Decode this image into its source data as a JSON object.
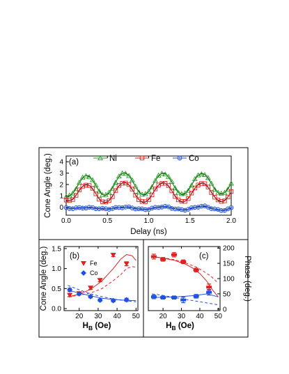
{
  "chart_data": [
    {
      "panel_label": "(a)",
      "type": "line",
      "xlabel": "Delay (ns)",
      "ylabel": "Cone Angle (deg.)",
      "xlim": [
        0,
        2.0
      ],
      "ylim": [
        -0.7,
        4.5
      ],
      "xticks": [
        "0.0",
        "0.5",
        "1.0",
        "1.5",
        "2.0"
      ],
      "yticks": [
        "0",
        "1",
        "2",
        "3",
        "4"
      ],
      "legend": "top",
      "period_ns": 0.47,
      "series": [
        {
          "name": "Ni",
          "color": "#28a028",
          "marker": "triangle-open",
          "offset": 2.05,
          "amp_start": 1.05,
          "amp_end": 0.9,
          "rise_ns": 0.12
        },
        {
          "name": "Fe",
          "color": "#e02020",
          "marker": "square-open",
          "offset": 1.3,
          "amp_start": 0.95,
          "amp_end": 0.82,
          "rise_ns": 0.12
        },
        {
          "name": "Co",
          "color": "#2050e0",
          "marker": "circle-plus-open",
          "offset": -0.08,
          "amp_start": 0.03,
          "amp_end": 0.2,
          "rise_ns": 0.12
        }
      ]
    },
    {
      "panel_label": "(b)",
      "type": "scatter",
      "xlabel_main": "H",
      "xlabel_sub": "B",
      "xlabel_unit": " (Oe)",
      "ylabel": "Cone Angle (deg.)",
      "xlim": [
        12,
        51
      ],
      "ylim": [
        -0.05,
        1.55
      ],
      "xticks": [
        "20",
        "30",
        "40",
        "50"
      ],
      "yticks": [
        "0.0",
        "0.5",
        "1.0",
        "1.5"
      ],
      "legend": "top-left",
      "series": [
        {
          "name": "Fe",
          "color": "#e02020",
          "marker": "triangle-down-filled",
          "x": [
            15,
            20,
            26,
            31,
            38,
            45
          ],
          "y": [
            0.34,
            0.38,
            0.52,
            0.71,
            1.34,
            1.12
          ],
          "err": [
            0.04,
            0.03,
            0.04,
            0.04,
            0.04,
            0.05
          ],
          "fit_solid": {
            "x": [
              14,
              20,
              26,
              32,
              38,
              42,
              45,
              48,
              50
            ],
            "y": [
              0.29,
              0.36,
              0.48,
              0.69,
              1.0,
              1.24,
              1.35,
              1.32,
              1.2
            ]
          },
          "fit_dashed": {
            "x": [
              14,
              20,
              26,
              32,
              38,
              42,
              45,
              48,
              50
            ],
            "y": [
              0.3,
              0.33,
              0.39,
              0.5,
              0.7,
              0.85,
              1.0,
              1.05,
              1.03
            ]
          }
        },
        {
          "name": "Co",
          "color": "#2050e0",
          "marker": "diamond-filled",
          "x": [
            15,
            20,
            26,
            31,
            38,
            45
          ],
          "y": [
            0.47,
            0.37,
            0.3,
            0.21,
            0.2,
            0.22
          ],
          "err": [
            0.04,
            0.03,
            0.03,
            0.03,
            0.03,
            0.04
          ],
          "fit_solid": {
            "x": [
              14,
              20,
              26,
              32,
              38,
              44,
              50
            ],
            "y": [
              0.46,
              0.39,
              0.32,
              0.26,
              0.23,
              0.21,
              0.2
            ]
          },
          "fit_dashed": {
            "x": [
              14,
              20,
              26,
              32,
              38,
              44,
              50
            ],
            "y": [
              0.58,
              0.47,
              0.37,
              0.3,
              0.24,
              0.2,
              0.17
            ]
          }
        }
      ]
    },
    {
      "panel_label": "(c)",
      "type": "scatter",
      "xlabel_main": "H",
      "xlabel_sub": "B",
      "xlabel_unit": " (Oe)",
      "ylabel": "Phase (deg.)",
      "xlim": [
        12,
        51
      ],
      "ylim": [
        -5,
        205
      ],
      "xticks": [
        "20",
        "30",
        "40",
        "50"
      ],
      "yticks": [
        "0",
        "50",
        "100",
        "150",
        "200"
      ],
      "series": [
        {
          "name": "Fe",
          "color": "#e02020",
          "marker": "bar-filled",
          "x": [
            15,
            20,
            26,
            31,
            38,
            45
          ],
          "y": [
            172,
            163,
            178,
            155,
            128,
            72
          ],
          "err": [
            8,
            6,
            7,
            6,
            6,
            10
          ],
          "fit_solid": {
            "x": [
              14,
              20,
              26,
              32,
              36,
              40,
              44,
              47,
              50
            ],
            "y": [
              172,
              167,
              160,
              148,
              135,
              117,
              90,
              62,
              40
            ]
          },
          "fit_dashed": {
            "x": [
              14,
              20,
              26,
              32,
              38,
              42,
              46,
              50
            ],
            "y": [
              172,
              168,
              162,
              152,
              138,
              124,
              108,
              85
            ]
          }
        },
        {
          "name": "Co",
          "color": "#2050e0",
          "marker": "bar-filled",
          "x": [
            15,
            20,
            26,
            31,
            38,
            45
          ],
          "y": [
            40,
            38,
            38,
            30,
            42,
            55
          ],
          "err": [
            6,
            5,
            5,
            9,
            6,
            9
          ],
          "fit_solid": {
            "x": [
              14,
              20,
              26,
              32,
              38,
              44,
              50
            ],
            "y": [
              38,
              39,
              40,
              42,
              45,
              50,
              40
            ]
          },
          "fit_dashed": {
            "x": [
              14,
              20,
              26,
              32,
              38,
              44,
              50
            ],
            "y": [
              50,
              45,
              38,
              32,
              26,
              20,
              14
            ]
          }
        }
      ]
    }
  ]
}
